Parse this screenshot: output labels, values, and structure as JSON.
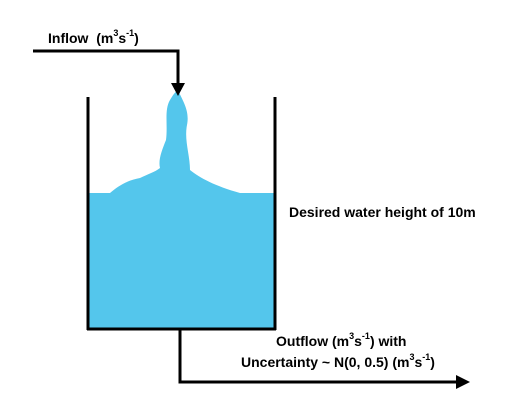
{
  "colors": {
    "water": "#54c6ec",
    "stroke": "#000000",
    "background": "#ffffff"
  },
  "inflow": {
    "word": "Inflow",
    "unit_open": "(m",
    "unit_exp_1": "3",
    "unit_s": "s",
    "unit_exp_2": "-1",
    "unit_close": ")"
  },
  "desired": {
    "text": "Desired water height of 10m"
  },
  "outflow": {
    "line1_open": "Outflow (m",
    "line1_exp_1": "3",
    "line1_s": "s",
    "line1_exp_2": "-1",
    "line1_close": ") with",
    "line2_prefix": "Uncertainty ~ N(0, 0.5) (m",
    "line2_exp_1": "3",
    "line2_s": "s",
    "line2_exp_2": "-1",
    "line2_close": ")"
  }
}
